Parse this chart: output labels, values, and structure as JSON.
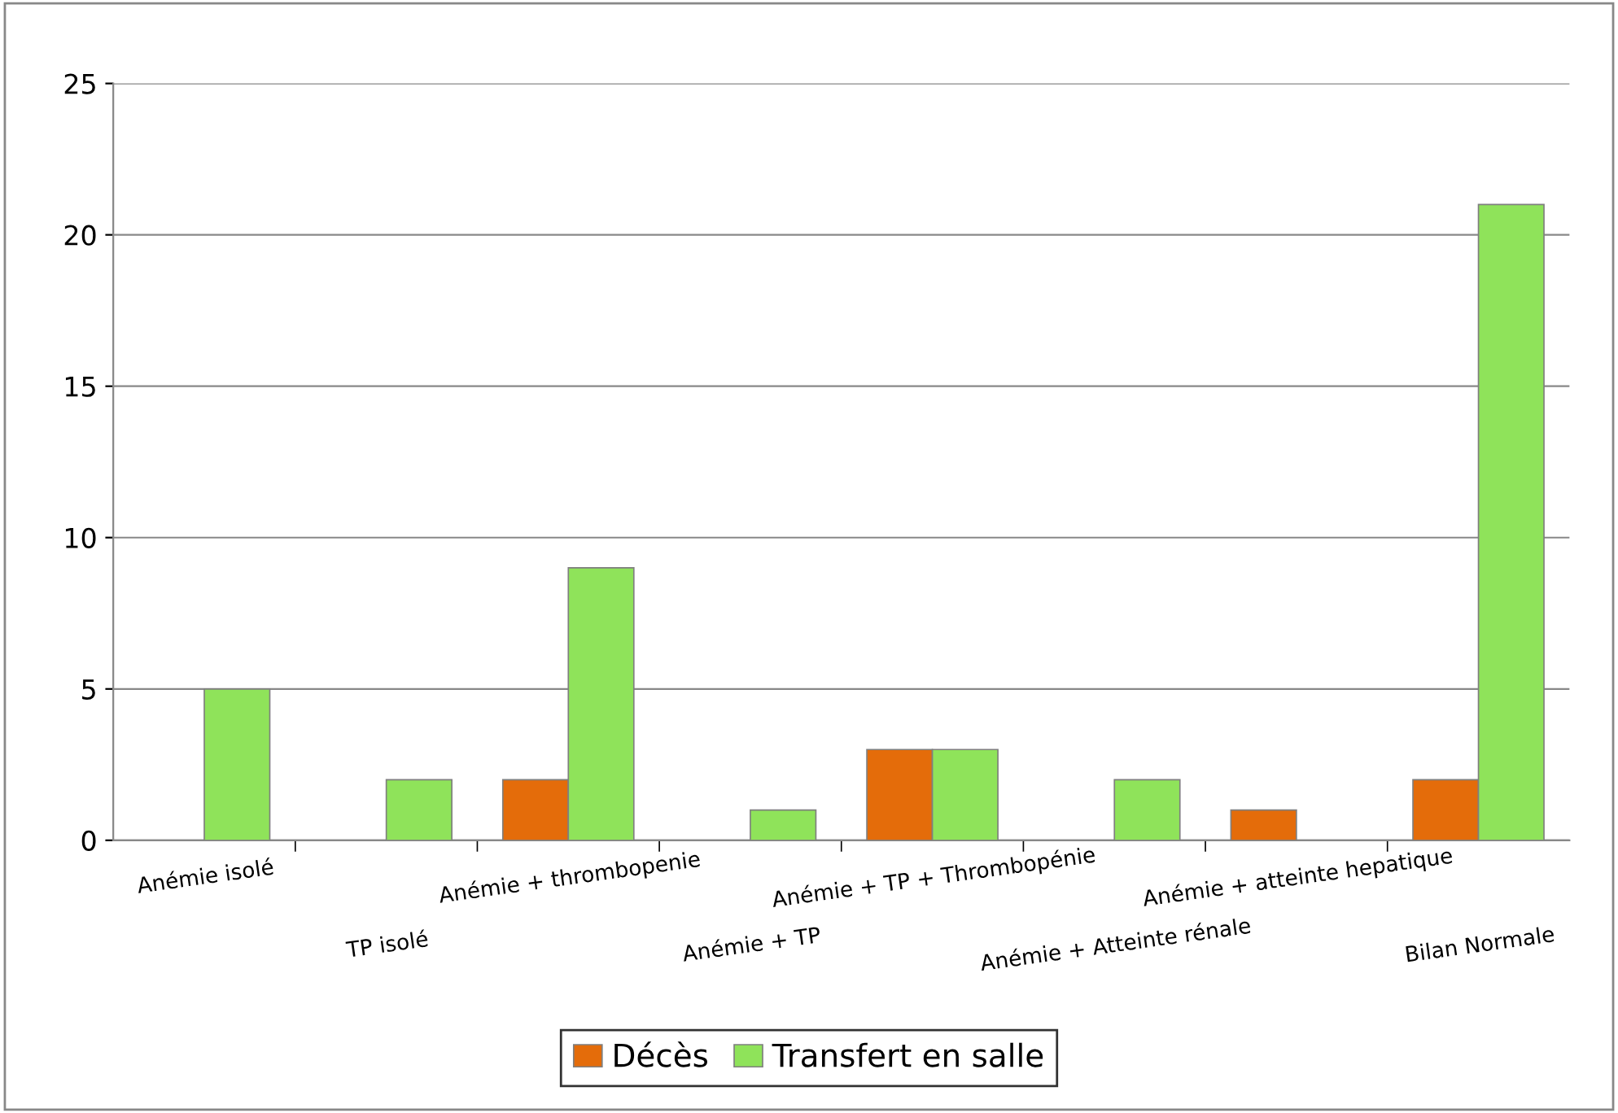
{
  "chart_data": {
    "type": "bar",
    "categories": [
      "Anémie isolé",
      "TP isolé",
      "Anémie + thrombopenie",
      "Anémie + TP",
      "Anémie + TP + Thrombopénie",
      "Anémie + Atteinte rénale",
      "Anémie + atteinte hepatique",
      "Bilan Normale"
    ],
    "series": [
      {
        "name": "Décès",
        "color": "#e46c0a",
        "values": [
          null,
          null,
          2,
          null,
          3,
          null,
          1,
          2
        ]
      },
      {
        "name": "Transfert en salle",
        "color": "#8fe35a",
        "values": [
          5,
          2,
          9,
          1,
          3,
          2,
          null,
          21
        ]
      }
    ],
    "ylim": [
      0,
      25
    ],
    "yticks": [
      0,
      5,
      10,
      15,
      20,
      25
    ],
    "grid": "y",
    "legend": "bottom"
  }
}
